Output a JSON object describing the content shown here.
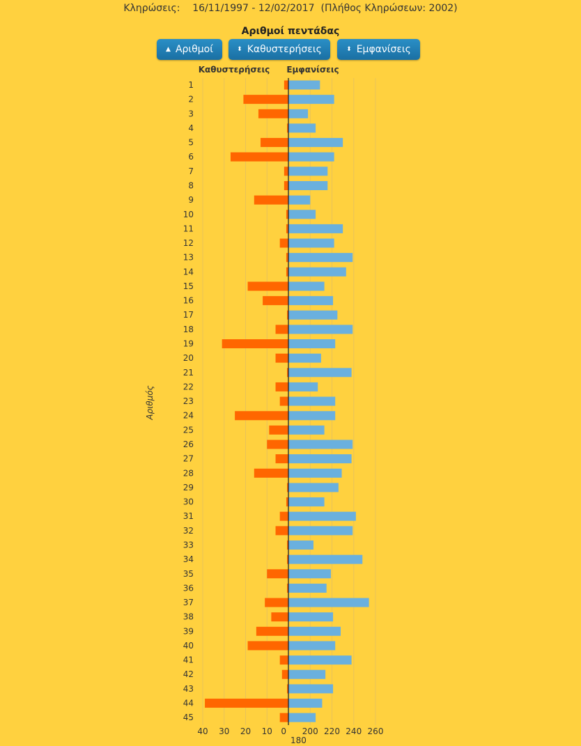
{
  "header": {
    "label": "Κληρώσεις:",
    "range": "16/11/1997 - 12/02/2017",
    "count_text": "(Πλήθος Κληρώσεων: 2002)"
  },
  "title": "Αριθμοί πεντάδας",
  "buttons": [
    {
      "label": "Αριθμοί",
      "icon": "triangle-up"
    },
    {
      "label": "Καθυστερήσεις",
      "icon": "sort"
    },
    {
      "label": "Εμφανίσεις",
      "icon": "sort"
    }
  ],
  "chart_data": {
    "type": "bar",
    "orientation": "horizontal-back-to-back",
    "ylabel": "Αριθμός",
    "categories": [
      "1",
      "2",
      "3",
      "4",
      "5",
      "6",
      "7",
      "8",
      "9",
      "10",
      "11",
      "12",
      "13",
      "14",
      "15",
      "16",
      "17",
      "18",
      "19",
      "20",
      "21",
      "22",
      "23",
      "24",
      "25",
      "26",
      "27",
      "28",
      "29",
      "30",
      "31",
      "32",
      "33",
      "34",
      "35",
      "36",
      "37",
      "38",
      "39",
      "40",
      "41",
      "42",
      "43",
      "44",
      "45"
    ],
    "series": [
      {
        "name": "Καθυστερήσεις",
        "color": "#FF6600",
        "xlim": [
          0,
          40
        ],
        "ticks": [
          "40",
          "30",
          "20",
          "10",
          "0"
        ],
        "values": [
          2,
          21,
          14,
          0,
          13,
          27,
          2,
          2,
          16,
          1,
          1,
          4,
          1,
          1,
          19,
          12,
          0,
          6,
          31,
          6,
          0,
          6,
          4,
          25,
          9,
          10,
          6,
          16,
          0,
          1,
          4,
          6,
          0,
          0,
          10,
          0,
          11,
          8,
          15,
          19,
          4,
          3,
          0,
          39,
          4
        ]
      },
      {
        "name": "Εμφανίσεις",
        "color": "#6AB0DE",
        "xlim": [
          180,
          260
        ],
        "ticks": [
          "180",
          "200",
          "220",
          "240",
          "260"
        ],
        "values": [
          209,
          222,
          198,
          205,
          230,
          222,
          216,
          216,
          200,
          205,
          230,
          222,
          239,
          233,
          213,
          221,
          225,
          239,
          223,
          210,
          238,
          207,
          223,
          223,
          213,
          239,
          238,
          229,
          226,
          213,
          242,
          239,
          203,
          248,
          219,
          215,
          254,
          221,
          228,
          223,
          238,
          214,
          221,
          211,
          205
        ]
      }
    ]
  }
}
